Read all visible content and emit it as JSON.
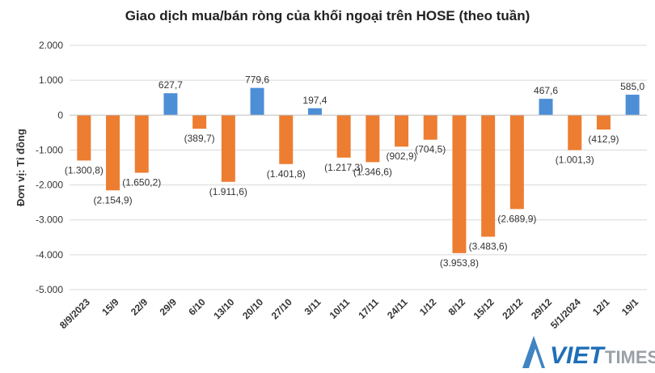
{
  "chart_data": {
    "type": "bar",
    "title": "Giao dịch mua/bán ròng của khối ngoại trên HOSE (theo tuần)",
    "ylabel": "Đơn vị: Tỉ đồng",
    "xlabel": "",
    "ylim": [
      -5000,
      2000
    ],
    "yticks": [
      2000,
      1000,
      0,
      -1000,
      -2000,
      -3000,
      -4000,
      -5000
    ],
    "ytick_labels": [
      "2.000",
      "1.000",
      "0",
      "-1.000",
      "-2.000",
      "-3.000",
      "-4.000",
      "-5.000"
    ],
    "categories": [
      "8/9/2023",
      "15/9",
      "22/9",
      "29/9",
      "6/10",
      "13/10",
      "20/10",
      "27/10",
      "3/11",
      "10/11",
      "17/11",
      "24/11",
      "1/12",
      "8/12",
      "15/12",
      "22/12",
      "29/12",
      "5/1/2024",
      "12/1",
      "19/1"
    ],
    "values": [
      -1300.8,
      -2154.9,
      -1650.2,
      627.7,
      -389.7,
      -1911.6,
      779.6,
      -1401.8,
      197.4,
      -1217.3,
      -1346.6,
      -902.9,
      -704.5,
      -3953.8,
      -3483.6,
      -2689.9,
      467.6,
      -1001.3,
      -412.9,
      585.0
    ],
    "value_labels": [
      "(1.300,8)",
      "(2.154,9)",
      "(1.650,2)",
      "627,7",
      "(389,7)",
      "(1.911,6)",
      "779,6",
      "(1.401,8)",
      "197,4",
      "(1.217,3)",
      "(1.346,6)",
      "(902,9)",
      "(704,5)",
      "(3.953,8)",
      "(3.483,6)",
      "(2.689,9)",
      "467,6",
      "(1.001,3)",
      "(412,9)",
      "585,0"
    ],
    "colors": {
      "positive": "#4d8fd6",
      "negative": "#ed7d31",
      "grid": "#d9d9d9",
      "axis": "#bfbfbf",
      "text": "#333333"
    },
    "grid": true,
    "legend": "none"
  },
  "watermark": {
    "text_viet": "VIET",
    "text_times": "TIMES",
    "color_viet": "#1e6fb7",
    "color_times": "#9aa0a6"
  }
}
